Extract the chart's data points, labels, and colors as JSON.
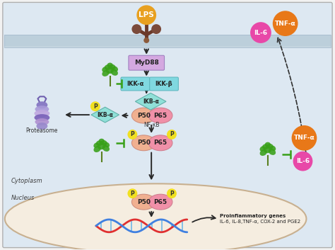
{
  "bg_cytoplasm": "#dde8f2",
  "bg_nucleus": "#f5ede0",
  "membrane_color": "#b8ccd8",
  "lps_color": "#e8a020",
  "lps_text": "LPS",
  "myd88_color": "#d4a8e0",
  "myd88_text": "MyD88",
  "ikka_color": "#80d8e0",
  "ikka_text": "IKK-α",
  "ikkb_color": "#80d8e0",
  "ikkb_text": "IKK-β",
  "ikba_color": "#90e0d8",
  "ikba_text": "IKB-α",
  "p50_color": "#f0b090",
  "p65_color": "#f090a8",
  "p50_text": "P50",
  "p65_text": "P65",
  "nfkb_text": "NF-κB",
  "p_color": "#f0e020",
  "p_text": "P",
  "proteasome_text": "Proteasome",
  "cytoplasm_text": "Cytoplasm",
  "nucleus_text": "Nucleus",
  "proinflam_line1": "Proinflammatory genes",
  "proinflam_line2": "IL-6, IL-8,TNF-α, COX-2 and PGE2",
  "tnfa_color": "#e87818",
  "il6_color": "#e848a8",
  "tnfa_text": "TNF-α",
  "il6_text": "IL-6",
  "green_color": "#38a018",
  "arrow_color": "#282828",
  "outer_bg": "#f2f2f2"
}
